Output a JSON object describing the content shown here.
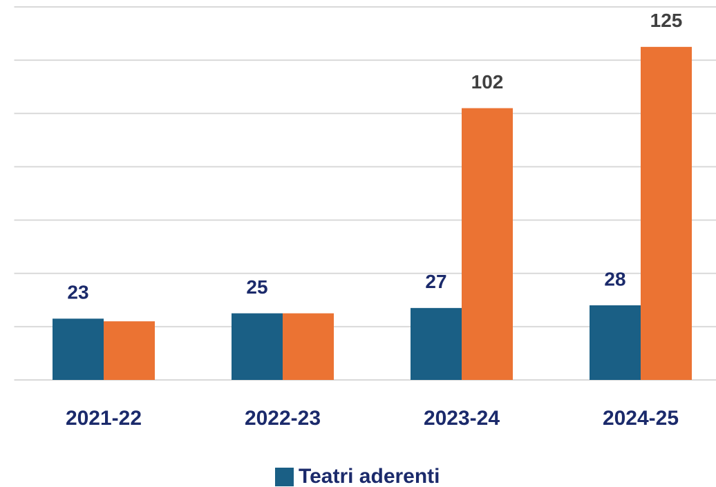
{
  "chart_data": {
    "type": "bar",
    "categories": [
      "2021-22",
      "2022-23",
      "2023-24",
      "2024-25"
    ],
    "series": [
      {
        "name": "Teatri aderenti",
        "color": "#1a5f85",
        "label_color": "#1b2a6b",
        "values": [
          23,
          25,
          27,
          28
        ]
      },
      {
        "color": "#eb7333",
        "label_color": "#404040",
        "values": [
          22,
          25,
          102,
          125
        ],
        "value_labels": [
          null,
          null,
          "102",
          "125"
        ]
      }
    ],
    "ylim": [
      0,
      140
    ],
    "yticks": [
      0,
      20,
      40,
      60,
      80,
      100,
      120,
      140
    ],
    "grid": true,
    "legend": "bottom"
  }
}
